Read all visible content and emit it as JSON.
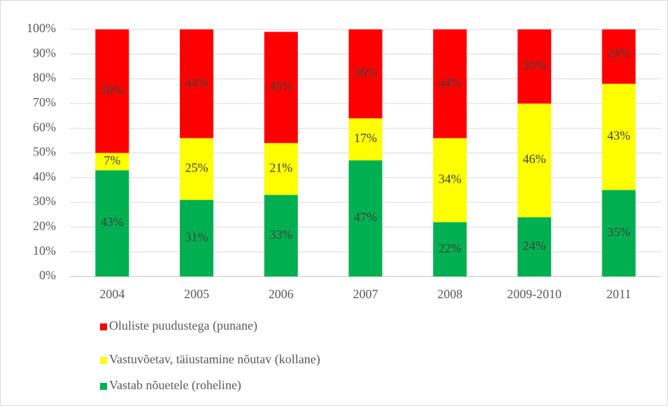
{
  "chart_data": {
    "type": "bar",
    "stacked": true,
    "categories": [
      "2004",
      "2005",
      "2006",
      "2007",
      "2008",
      "2009-2010",
      "2011"
    ],
    "series": [
      {
        "name": "Vastab nõuetele (roheline)",
        "color": "#00b050",
        "values": [
          43,
          31,
          33,
          47,
          22,
          24,
          35
        ],
        "value_labels": [
          "43%",
          "31%",
          "33%",
          "47%",
          "22%",
          "24%",
          "35%"
        ]
      },
      {
        "name": "Vastuvõetav, täiustamine nõutav (kollane)",
        "color": "#ffff00",
        "values": [
          7,
          25,
          21,
          17,
          34,
          46,
          43
        ],
        "value_labels": [
          "7%",
          "25%",
          "21%",
          "17%",
          "34%",
          "46%",
          "43%"
        ]
      },
      {
        "name": "Oluliste puudustega (punane)",
        "color": "#ff0000",
        "values": [
          50,
          44,
          45,
          36,
          44,
          30,
          24
        ],
        "value_labels": [
          "50%",
          "44%",
          "45%",
          "36%",
          "44%",
          "30%",
          "24%"
        ]
      }
    ],
    "ylim": [
      0,
      100
    ],
    "yticks": [
      {
        "value": 0,
        "label": "0%"
      },
      {
        "value": 10,
        "label": "10%"
      },
      {
        "value": 20,
        "label": "20%"
      },
      {
        "value": 30,
        "label": "30%"
      },
      {
        "value": 40,
        "label": "40%"
      },
      {
        "value": 50,
        "label": "50%"
      },
      {
        "value": 60,
        "label": "60%"
      },
      {
        "value": 70,
        "label": "70%"
      },
      {
        "value": 80,
        "label": "80%"
      },
      {
        "value": 90,
        "label": "90%"
      },
      {
        "value": 100,
        "label": "100%"
      }
    ],
    "grid": true,
    "legend": "bottom"
  }
}
